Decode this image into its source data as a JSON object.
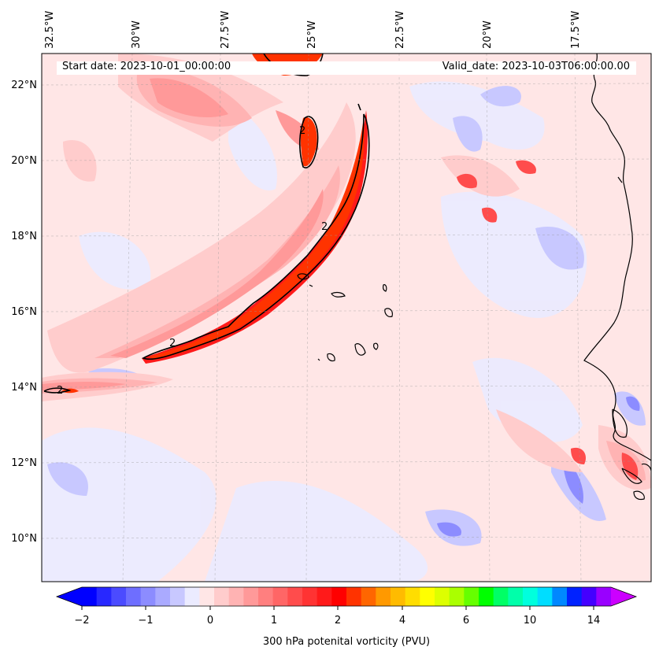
{
  "header": {
    "start_date": "Start date: 2023-10-01_00:00:00",
    "valid_date": "Valid_date: 2023-10-03T06:00:00.00"
  },
  "map": {
    "longitude_labels": [
      "32.5°W",
      "30°W",
      "27.5°W",
      "25°W",
      "22.5°W",
      "20°W",
      "17.5°W"
    ],
    "latitude_labels": [
      "22°N",
      "20°N",
      "18°N",
      "16°N",
      "14°N",
      "12°N",
      "10°N"
    ],
    "contour_label": "2"
  },
  "colorbar": {
    "label": "300 hPa potenital vorticity (PVU)",
    "tick_labels": [
      "−2",
      "−1",
      "0",
      "1",
      "2",
      "4",
      "6",
      "10",
      "14"
    ],
    "colors": [
      "#0000ff",
      "#2828ff",
      "#4b4bff",
      "#6e6eff",
      "#8c8cff",
      "#aaaaff",
      "#c8c8ff",
      "#ebebff",
      "#ffe6e6",
      "#ffcccc",
      "#ffb3b3",
      "#ff9999",
      "#ff7f7f",
      "#ff6666",
      "#ff4c4c",
      "#ff3333",
      "#ff1a1a",
      "#ff0000",
      "#ff3300",
      "#ff6600",
      "#ff9900",
      "#ffbb00",
      "#ffdd00",
      "#ffff00",
      "#ddff00",
      "#aaff00",
      "#66ff00",
      "#00ff00",
      "#00ff66",
      "#00ffaa",
      "#00ffdd",
      "#00ddff",
      "#0088ff",
      "#0022ff",
      "#4400ff",
      "#9900ff",
      "#cc00ff"
    ]
  }
}
